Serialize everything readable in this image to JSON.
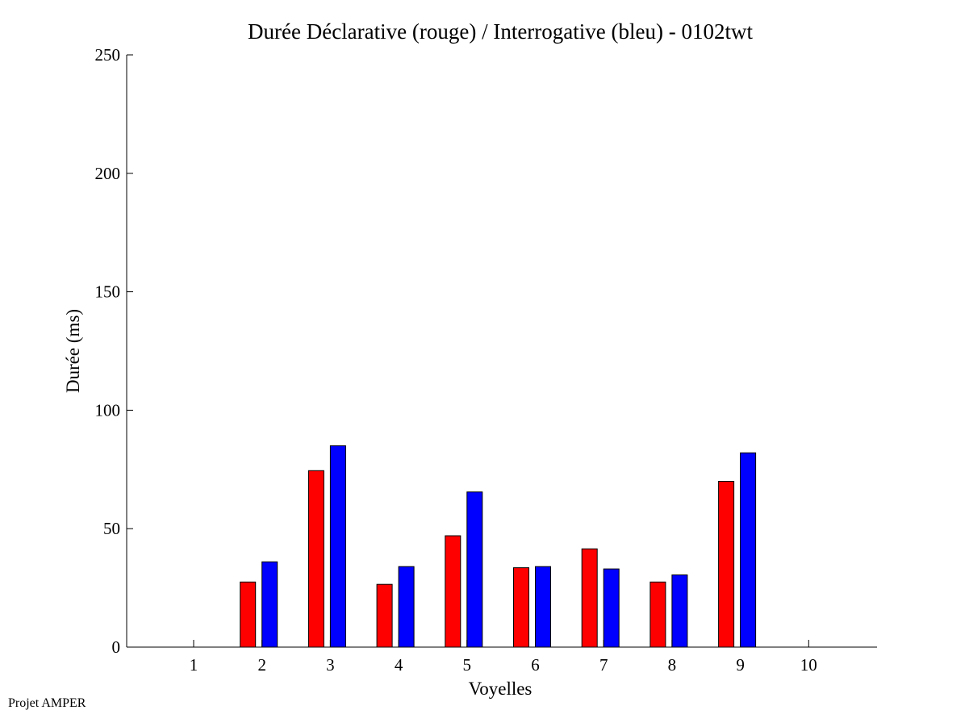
{
  "footer": "Projet AMPER",
  "chart_data": {
    "type": "bar",
    "title": "Durée Déclarative (rouge) / Interrogative (bleu) - 0102twt",
    "xlabel": "Voyelles",
    "ylabel": "Durée (ms)",
    "categories": [
      "1",
      "2",
      "3",
      "4",
      "5",
      "6",
      "7",
      "8",
      "9",
      "10"
    ],
    "ylim": [
      0,
      250
    ],
    "yticks": [
      0,
      50,
      100,
      150,
      200,
      250
    ],
    "grid": false,
    "legend": "none",
    "series": [
      {
        "color": "#ff0000",
        "values": [
          0,
          27.5,
          74.5,
          26.5,
          47,
          33.5,
          41.5,
          27.5,
          70,
          0
        ]
      },
      {
        "color": "#0000ff",
        "values": [
          0,
          36,
          85,
          34,
          65.5,
          34,
          33,
          30.5,
          82,
          0
        ]
      }
    ]
  }
}
